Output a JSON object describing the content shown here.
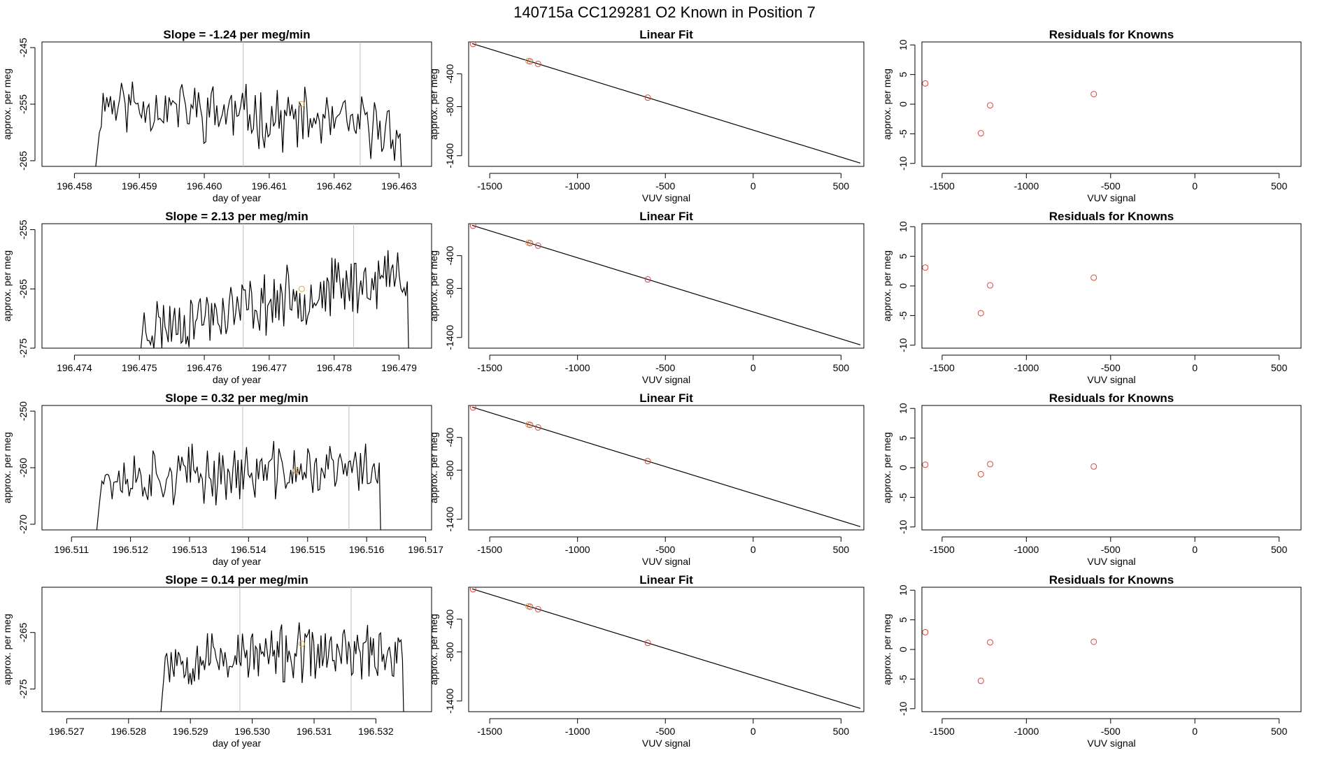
{
  "suptitle": "140715a      CC129281    O2 Known in Position  7",
  "chart_data": [
    {
      "type": "line",
      "panel": "timeseries",
      "row": 1,
      "title": "Slope =  -1.24  per meg/min",
      "xlabel": "day of year",
      "ylabel": "approx. per meg",
      "xlim": [
        196.4575,
        196.4635
      ],
      "ylim": [
        -266,
        -244
      ],
      "xticks": [
        196.458,
        196.459,
        196.46,
        196.461,
        196.462,
        196.463
      ],
      "xtick_decimals": 3,
      "yticks": [
        -265,
        -255,
        -245
      ],
      "vlines": [
        196.4606,
        196.4624
      ],
      "start": 196.4583,
      "end": 196.4631,
      "trend": -0.9,
      "base": -257,
      "amp": 4.2,
      "seed": 11,
      "marker": {
        "x": 196.4615,
        "y": -255
      }
    },
    {
      "type": "scatter",
      "panel": "linear_fit",
      "row": 1,
      "title": "Linear Fit",
      "xlabel": "VUV signal",
      "ylabel": "approx. per meg",
      "xlim": [
        -1620,
        630
      ],
      "ylim": [
        -1530,
        -10
      ],
      "xticks": [
        -1500,
        -1000,
        -500,
        0,
        500
      ],
      "yticks": [
        -1400,
        -800,
        -400
      ],
      "line": {
        "x": [
          -1600,
          610
        ],
        "y": [
          -30,
          -1490
        ]
      },
      "points": [
        {
          "x": -1595,
          "y": -35,
          "color": "red"
        },
        {
          "x": -1280,
          "y": -242,
          "color": "orange"
        },
        {
          "x": -1270,
          "y": -248,
          "color": "red"
        },
        {
          "x": -1225,
          "y": -278,
          "color": "red"
        },
        {
          "x": -600,
          "y": -690,
          "color": "red"
        }
      ]
    },
    {
      "type": "scatter",
      "panel": "residuals",
      "row": 1,
      "title": "Residuals for Knowns",
      "xlabel": "VUV signal",
      "ylabel": "approx. per meg",
      "xlim": [
        -1620,
        630
      ],
      "ylim": [
        -10.5,
        10.5
      ],
      "xticks": [
        -1500,
        -1000,
        -500,
        0,
        500
      ],
      "yticks": [
        -10,
        -5,
        0,
        5,
        10
      ],
      "points": [
        {
          "x": -1600,
          "y": 3.5,
          "color": "red"
        },
        {
          "x": -1270,
          "y": -4.9,
          "color": "red"
        },
        {
          "x": -1215,
          "y": -0.2,
          "color": "red"
        },
        {
          "x": -600,
          "y": 1.7,
          "color": "red"
        }
      ]
    },
    {
      "type": "line",
      "panel": "timeseries",
      "row": 2,
      "title": "Slope =  2.13  per meg/min",
      "xlabel": "day of year",
      "ylabel": "approx. per meg",
      "xlim": [
        196.4735,
        196.4795
      ],
      "ylim": [
        -275,
        -254
      ],
      "xticks": [
        196.474,
        196.475,
        196.476,
        196.477,
        196.478,
        196.479
      ],
      "xtick_decimals": 3,
      "yticks": [
        -275,
        -265,
        -255
      ],
      "vlines": [
        196.4766,
        196.4783
      ],
      "start": 196.475,
      "end": 196.4792,
      "trend": 1.6,
      "base": -267,
      "amp": 4.0,
      "seed": 23,
      "marker": {
        "x": 196.4775,
        "y": -265
      }
    },
    {
      "type": "scatter",
      "panel": "linear_fit",
      "row": 2,
      "title": "Linear Fit",
      "xlabel": "VUV signal",
      "ylabel": "approx. per meg",
      "xlim": [
        -1620,
        630
      ],
      "ylim": [
        -1530,
        -10
      ],
      "xticks": [
        -1500,
        -1000,
        -500,
        0,
        500
      ],
      "yticks": [
        -1400,
        -800,
        -400
      ],
      "line": {
        "x": [
          -1600,
          610
        ],
        "y": [
          -30,
          -1490
        ]
      },
      "points": [
        {
          "x": -1595,
          "y": -35,
          "color": "red"
        },
        {
          "x": -1280,
          "y": -242,
          "color": "orange"
        },
        {
          "x": -1270,
          "y": -248,
          "color": "red"
        },
        {
          "x": -1225,
          "y": -278,
          "color": "red"
        },
        {
          "x": -600,
          "y": -690,
          "color": "red"
        }
      ]
    },
    {
      "type": "scatter",
      "panel": "residuals",
      "row": 2,
      "title": "Residuals for Knowns",
      "xlabel": "VUV signal",
      "ylabel": "approx. per meg",
      "xlim": [
        -1620,
        630
      ],
      "ylim": [
        -10.5,
        10.5
      ],
      "xticks": [
        -1500,
        -1000,
        -500,
        0,
        500
      ],
      "yticks": [
        -10,
        -5,
        0,
        5,
        10
      ],
      "points": [
        {
          "x": -1600,
          "y": 3.1,
          "color": "red"
        },
        {
          "x": -1270,
          "y": -4.6,
          "color": "red"
        },
        {
          "x": -1215,
          "y": 0.1,
          "color": "red"
        },
        {
          "x": -600,
          "y": 1.4,
          "color": "red"
        }
      ]
    },
    {
      "type": "line",
      "panel": "timeseries",
      "row": 3,
      "title": "Slope =  0.32  per meg/min",
      "xlabel": "day of year",
      "ylabel": "approx. per meg",
      "xlim": [
        196.5105,
        196.5171
      ],
      "ylim": [
        -271,
        -249
      ],
      "xticks": [
        196.511,
        196.512,
        196.513,
        196.514,
        196.515,
        196.516,
        196.517
      ],
      "xtick_decimals": 3,
      "yticks": [
        -270,
        -260,
        -250
      ],
      "vlines": [
        196.5139,
        196.5157
      ],
      "start": 196.5114,
      "end": 196.5163,
      "trend": 0.3,
      "base": -261,
      "amp": 4.0,
      "seed": 37,
      "marker": {
        "x": 196.5148,
        "y": -260.5
      }
    },
    {
      "type": "scatter",
      "panel": "linear_fit",
      "row": 3,
      "title": "Linear Fit",
      "xlabel": "VUV signal",
      "ylabel": "approx. per meg",
      "xlim": [
        -1620,
        630
      ],
      "ylim": [
        -1530,
        -10
      ],
      "xticks": [
        -1500,
        -1000,
        -500,
        0,
        500
      ],
      "yticks": [
        -1400,
        -800,
        -400
      ],
      "line": {
        "x": [
          -1600,
          610
        ],
        "y": [
          -30,
          -1490
        ]
      },
      "points": [
        {
          "x": -1595,
          "y": -35,
          "color": "red"
        },
        {
          "x": -1280,
          "y": -242,
          "color": "orange"
        },
        {
          "x": -1270,
          "y": -248,
          "color": "red"
        },
        {
          "x": -1225,
          "y": -278,
          "color": "red"
        },
        {
          "x": -600,
          "y": -690,
          "color": "red"
        }
      ]
    },
    {
      "type": "scatter",
      "panel": "residuals",
      "row": 3,
      "title": "Residuals for Knowns",
      "xlabel": "VUV signal",
      "ylabel": "approx. per meg",
      "xlim": [
        -1620,
        630
      ],
      "ylim": [
        -10.5,
        10.5
      ],
      "xticks": [
        -1500,
        -1000,
        -500,
        0,
        500
      ],
      "yticks": [
        -10,
        -5,
        0,
        5,
        10
      ],
      "points": [
        {
          "x": -1600,
          "y": 0.5,
          "color": "red"
        },
        {
          "x": -1270,
          "y": -1.1,
          "color": "red"
        },
        {
          "x": -1215,
          "y": 0.6,
          "color": "red"
        },
        {
          "x": -600,
          "y": 0.2,
          "color": "red"
        }
      ]
    },
    {
      "type": "line",
      "panel": "timeseries",
      "row": 4,
      "title": "Slope =  0.14  per meg/min",
      "xlabel": "day of year",
      "ylabel": "approx. per meg",
      "xlim": [
        196.5266,
        196.5329
      ],
      "ylim": [
        -279,
        -257
      ],
      "xticks": [
        196.527,
        196.528,
        196.529,
        196.53,
        196.531,
        196.532
      ],
      "xtick_decimals": 3,
      "yticks": [
        -275,
        -265
      ],
      "vlines": [
        196.5298,
        196.5316
      ],
      "start": 196.5285,
      "end": 196.5325,
      "trend": 0.2,
      "base": -269,
      "amp": 4.0,
      "seed": 53,
      "marker": {
        "x": 196.5308,
        "y": -267
      }
    },
    {
      "type": "scatter",
      "panel": "linear_fit",
      "row": 4,
      "title": "Linear Fit",
      "xlabel": "VUV signal",
      "ylabel": "approx. per meg",
      "xlim": [
        -1620,
        630
      ],
      "ylim": [
        -1530,
        -10
      ],
      "xticks": [
        -1500,
        -1000,
        -500,
        0,
        500
      ],
      "yticks": [
        -1400,
        -800,
        -400
      ],
      "line": {
        "x": [
          -1600,
          610
        ],
        "y": [
          -30,
          -1490
        ]
      },
      "points": [
        {
          "x": -1595,
          "y": -35,
          "color": "red"
        },
        {
          "x": -1280,
          "y": -242,
          "color": "orange"
        },
        {
          "x": -1270,
          "y": -248,
          "color": "red"
        },
        {
          "x": -1225,
          "y": -278,
          "color": "red"
        },
        {
          "x": -600,
          "y": -690,
          "color": "red"
        }
      ]
    },
    {
      "type": "scatter",
      "panel": "residuals",
      "row": 4,
      "title": "Residuals for Knowns",
      "xlabel": "VUV signal",
      "ylabel": "approx. per meg",
      "xlim": [
        -1620,
        630
      ],
      "ylim": [
        -10.5,
        10.5
      ],
      "xticks": [
        -1500,
        -1000,
        -500,
        0,
        500
      ],
      "yticks": [
        -10,
        -5,
        0,
        5,
        10
      ],
      "points": [
        {
          "x": -1600,
          "y": 2.9,
          "color": "red"
        },
        {
          "x": -1270,
          "y": -5.3,
          "color": "red"
        },
        {
          "x": -1215,
          "y": 1.2,
          "color": "red"
        },
        {
          "x": -600,
          "y": 1.3,
          "color": "red"
        }
      ]
    }
  ],
  "colors": {
    "line": "#000000",
    "red": "#d9453d",
    "orange": "#e8a33a",
    "vline": "#bdbdbd"
  }
}
